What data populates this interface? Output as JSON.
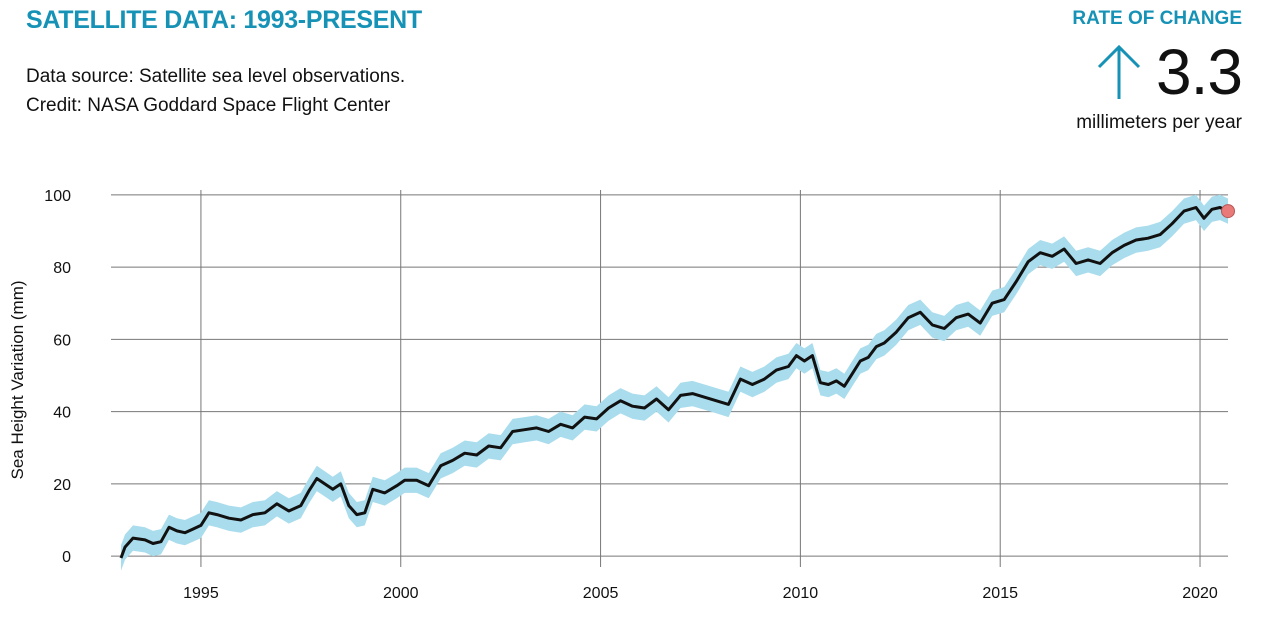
{
  "header": {
    "title": "SATELLITE DATA: 1993-PRESENT",
    "source_line": "Data source: Satellite sea level observations.",
    "credit_line": "Credit: NASA Goddard Space Flight Center"
  },
  "rate": {
    "label": "RATE OF CHANGE",
    "value": "3.3",
    "unit": "millimeters per year",
    "arrow_icon": "arrow-up-icon",
    "accent_color": "#1592b5"
  },
  "chart_data": {
    "type": "line",
    "title": "",
    "xlabel": "",
    "ylabel": "Sea Height Variation (mm)",
    "xlim": [
      1993.0,
      2020.7
    ],
    "ylim": [
      -3,
      103
    ],
    "x_ticks": [
      "1995",
      "2000",
      "2005",
      "2010",
      "2015",
      "2020"
    ],
    "y_ticks": [
      "0",
      "20",
      "40",
      "60",
      "80",
      "100"
    ],
    "grid": true,
    "line_color": "#111111",
    "band_color": "#a9dcec",
    "uncertainty_mm": 3.5,
    "latest_marker_color": "#e87a7a",
    "series": [
      {
        "x": [
          1993.0,
          1993.1,
          1993.3,
          1993.6,
          1993.8,
          1994.0,
          1994.2,
          1994.4,
          1994.6,
          1994.8,
          1995.0,
          1995.2,
          1995.4,
          1995.7,
          1996.0,
          1996.3,
          1996.6,
          1996.9,
          1997.2,
          1997.5,
          1997.7,
          1997.9,
          1998.1,
          1998.3,
          1998.5,
          1998.7,
          1998.9,
          1999.1,
          1999.3,
          1999.6,
          1999.9,
          2000.1,
          2000.4,
          2000.7,
          2001.0,
          2001.3,
          2001.6,
          2001.9,
          2002.2,
          2002.5,
          2002.8,
          2003.1,
          2003.4,
          2003.7,
          2004.0,
          2004.3,
          2004.6,
          2004.9,
          2005.2,
          2005.5,
          2005.8,
          2006.1,
          2006.4,
          2006.7,
          2007.0,
          2007.3,
          2007.6,
          2007.9,
          2008.2,
          2008.5,
          2008.8,
          2009.1,
          2009.4,
          2009.7,
          2009.9,
          2010.1,
          2010.3,
          2010.5,
          2010.7,
          2010.9,
          2011.1,
          2011.3,
          2011.5,
          2011.7,
          2011.9,
          2012.1,
          2012.4,
          2012.7,
          2013.0,
          2013.3,
          2013.6,
          2013.9,
          2014.2,
          2014.5,
          2014.8,
          2015.1,
          2015.4,
          2015.7,
          2016.0,
          2016.3,
          2016.6,
          2016.9,
          2017.2,
          2017.5,
          2017.8,
          2018.1,
          2018.4,
          2018.7,
          2019.0,
          2019.3,
          2019.6,
          2019.9,
          2020.1,
          2020.3,
          2020.5,
          2020.7
        ],
        "y": [
          -0.5,
          2.5,
          5.0,
          4.5,
          3.5,
          4.0,
          8.0,
          7.0,
          6.5,
          7.5,
          8.5,
          12.0,
          11.5,
          10.5,
          10.0,
          11.5,
          12.0,
          14.5,
          12.5,
          14.0,
          18.0,
          21.5,
          20.0,
          18.5,
          20.0,
          14.0,
          11.5,
          12.0,
          18.5,
          17.5,
          19.5,
          21.0,
          21.0,
          19.5,
          25.0,
          26.5,
          28.5,
          28.0,
          30.5,
          30.0,
          34.5,
          35.0,
          35.5,
          34.5,
          36.5,
          35.5,
          38.5,
          38.0,
          41.0,
          43.0,
          41.5,
          41.0,
          43.5,
          40.5,
          44.5,
          45.0,
          44.0,
          43.0,
          42.0,
          49.0,
          47.5,
          49.0,
          51.5,
          52.5,
          55.5,
          54.0,
          55.5,
          48.0,
          47.5,
          48.5,
          47.0,
          50.5,
          54.0,
          55.0,
          58.0,
          59.0,
          62.0,
          66.0,
          67.5,
          64.0,
          63.0,
          66.0,
          67.0,
          64.5,
          70.0,
          71.0,
          76.0,
          81.5,
          84.0,
          83.0,
          85.0,
          81.0,
          82.0,
          81.0,
          84.0,
          86.0,
          87.5,
          88.0,
          89.0,
          92.0,
          95.5,
          96.5,
          93.5,
          96.0,
          96.5,
          95.5
        ]
      }
    ]
  }
}
